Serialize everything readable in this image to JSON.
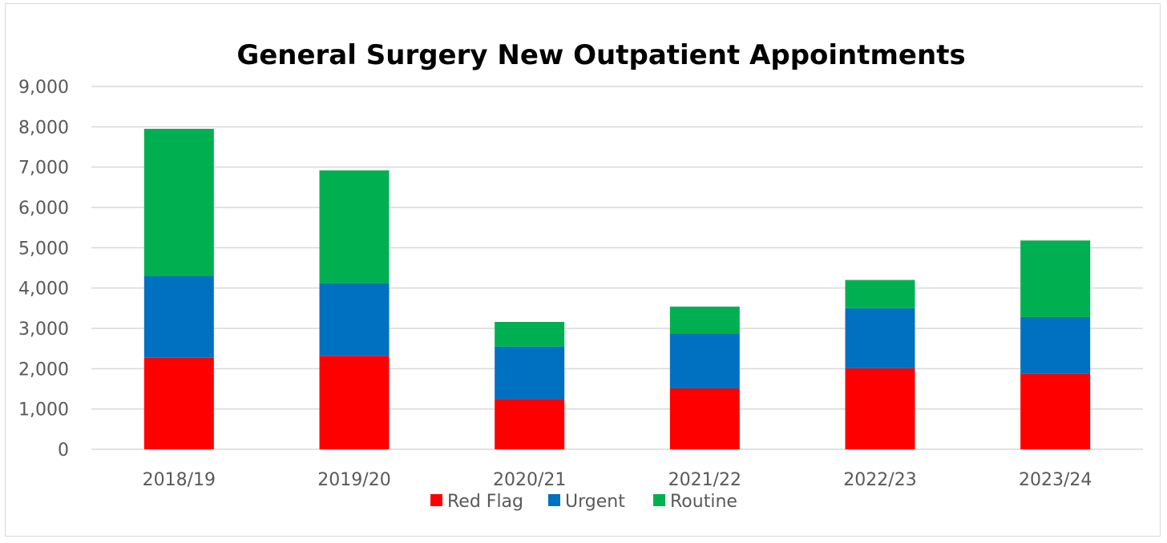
{
  "chart_data": {
    "type": "bar",
    "stacked": true,
    "title": "General Surgery New Outpatient Appointments",
    "xlabel": "",
    "ylabel": "",
    "categories": [
      "2018/19",
      "2019/20",
      "2020/21",
      "2021/22",
      "2022/23",
      "2023/24"
    ],
    "ylim": [
      0,
      9000
    ],
    "yticks": [
      0,
      1000,
      2000,
      3000,
      4000,
      5000,
      6000,
      7000,
      8000,
      9000
    ],
    "ytick_labels": [
      "0",
      "1,000",
      "2,000",
      "3,000",
      "4,000",
      "5,000",
      "6,000",
      "7,000",
      "8,000",
      "9,000"
    ],
    "grid": true,
    "legend_position": "bottom",
    "series": [
      {
        "name": "Red Flag",
        "color": "#ff0000",
        "values": [
          2270,
          2320,
          1250,
          1510,
          2010,
          1870
        ]
      },
      {
        "name": "Urgent",
        "color": "#0070c0",
        "values": [
          2030,
          1800,
          1300,
          1360,
          1490,
          1410
        ]
      },
      {
        "name": "Routine",
        "color": "#00b050",
        "values": [
          3650,
          2800,
          610,
          670,
          700,
          1900
        ]
      }
    ]
  }
}
